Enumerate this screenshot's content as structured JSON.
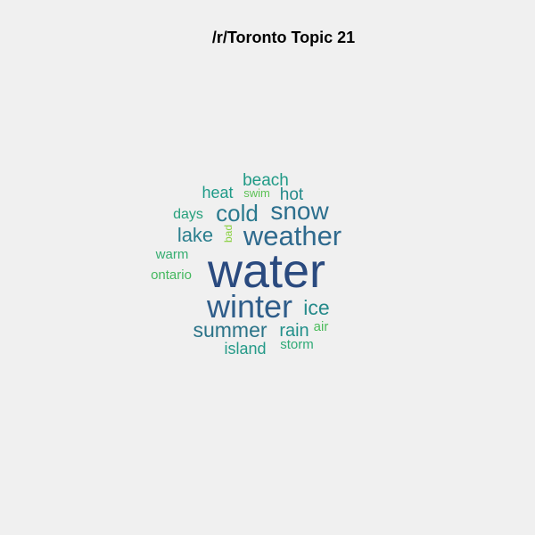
{
  "title": "/r/Toronto Topic 21",
  "chart_data": {
    "type": "wordcloud",
    "title": "/r/Toronto Topic 21",
    "words": [
      {
        "text": "water",
        "weight": 1.0,
        "color": "#2a4a7f"
      },
      {
        "text": "winter",
        "weight": 0.62,
        "color": "#2f5d8a"
      },
      {
        "text": "weather",
        "weight": 0.55,
        "color": "#2f6a8e"
      },
      {
        "text": "snow",
        "weight": 0.48,
        "color": "#2c6f8e"
      },
      {
        "text": "cold",
        "weight": 0.45,
        "color": "#2a7a8e"
      },
      {
        "text": "summer",
        "weight": 0.42,
        "color": "#2a7388"
      },
      {
        "text": "ice",
        "weight": 0.4,
        "color": "#258a8a"
      },
      {
        "text": "lake",
        "weight": 0.37,
        "color": "#2b7f8e"
      },
      {
        "text": "rain",
        "weight": 0.35,
        "color": "#22908a"
      },
      {
        "text": "beach",
        "weight": 0.33,
        "color": "#209a86"
      },
      {
        "text": "hot",
        "weight": 0.33,
        "color": "#248a8a"
      },
      {
        "text": "heat",
        "weight": 0.32,
        "color": "#1f9a88"
      },
      {
        "text": "island",
        "weight": 0.31,
        "color": "#259a88"
      },
      {
        "text": "days",
        "weight": 0.27,
        "color": "#27a07c"
      },
      {
        "text": "storm",
        "weight": 0.25,
        "color": "#30aa76"
      },
      {
        "text": "warm",
        "weight": 0.24,
        "color": "#35ad70"
      },
      {
        "text": "ontario",
        "weight": 0.24,
        "color": "#44b85f"
      },
      {
        "text": "air",
        "weight": 0.23,
        "color": "#4cbc5c"
      },
      {
        "text": "swim",
        "weight": 0.2,
        "color": "#5cc255"
      },
      {
        "text": "bad",
        "weight": 0.17,
        "color": "#8ad040"
      }
    ]
  }
}
